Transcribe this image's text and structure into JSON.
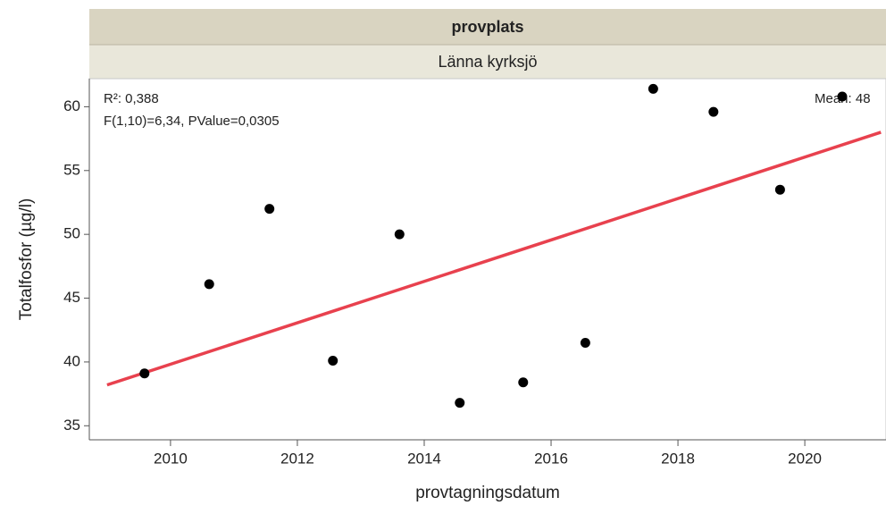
{
  "chart_data": {
    "type": "scatter",
    "group_header": "provplats",
    "group_label": "Länna kyrksjö",
    "ylabel": "Totalfosfor (µg/l)",
    "xlabel": "provtagningsdatum",
    "annotations": [
      "R²: 0,388",
      "F(1,10)=6,34, PValue=0,0305",
      "Mean: 48"
    ],
    "x": [
      2009.59,
      2010.61,
      2011.56,
      2012.56,
      2013.61,
      2014.56,
      2015.56,
      2016.54,
      2017.61,
      2018.56,
      2019.61,
      2020.59
    ],
    "values": [
      39.1,
      46.1,
      52.0,
      40.1,
      50.0,
      36.8,
      38.4,
      41.5,
      61.4,
      59.6,
      53.5,
      60.8
    ],
    "color": "#000000",
    "fit": {
      "x": [
        2009.0,
        2021.2
      ],
      "values": [
        38.2,
        58.0
      ],
      "color": "#e8414e"
    },
    "xlim": [
      2008.72,
      2021.28
    ],
    "ylim": [
      33.9,
      62.2
    ],
    "xticks": [
      2010,
      2012,
      2014,
      2016,
      2018,
      2020
    ],
    "yticks": [
      35,
      40,
      45,
      50,
      55,
      60
    ]
  }
}
